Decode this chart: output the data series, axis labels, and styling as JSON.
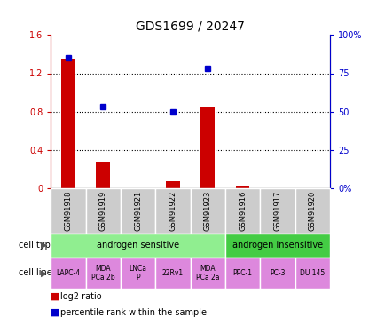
{
  "title": "GDS1699 / 20247",
  "samples": [
    "GSM91918",
    "GSM91919",
    "GSM91921",
    "GSM91922",
    "GSM91923",
    "GSM91916",
    "GSM91917",
    "GSM91920"
  ],
  "log2_ratio": [
    1.35,
    0.28,
    0.0,
    0.07,
    0.85,
    0.02,
    0.0,
    0.0
  ],
  "percentile_rank": [
    85,
    53,
    0,
    50,
    78,
    0,
    0,
    0
  ],
  "percentile_rank_shown": [
    true,
    true,
    false,
    true,
    true,
    false,
    false,
    false
  ],
  "bar_color": "#cc0000",
  "dot_color": "#0000cc",
  "ylim_left": [
    0,
    1.6
  ],
  "ylim_right": [
    0,
    100
  ],
  "yticks_left": [
    0,
    0.4,
    0.8,
    1.2,
    1.6
  ],
  "ytick_labels_left": [
    "0",
    "0.4",
    "0.8",
    "1.2",
    "1.6"
  ],
  "yticks_right": [
    0,
    25,
    50,
    75,
    100
  ],
  "ytick_labels_right": [
    "0%",
    "25",
    "50",
    "75",
    "100%"
  ],
  "cell_line_labels": [
    "LAPC-4",
    "MDA\nPCa 2b",
    "LNCa\nP",
    "22Rv1",
    "MDA\nPCa 2a",
    "PPC-1",
    "PC-3",
    "DU 145"
  ],
  "cell_type_sensitive_color": "#90ee90",
  "cell_type_insensitive_color": "#44cc44",
  "cell_line_color": "#dd88dd",
  "sample_bg_color": "#cccccc",
  "left_label_color": "#cc0000",
  "right_label_color": "#0000cc",
  "n_sensitive": 5,
  "n_insensitive": 3
}
